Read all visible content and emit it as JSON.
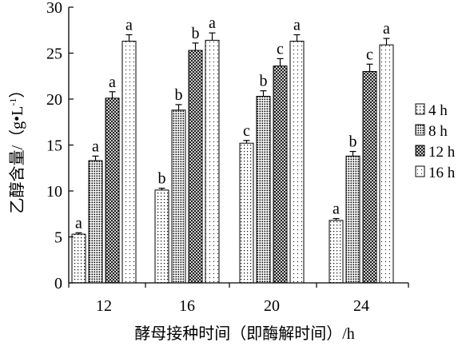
{
  "chart_data": {
    "type": "bar",
    "title": "",
    "xlabel": "酵母接种时间（即酶解时间）/h",
    "ylabel": "乙醇含量/（g•L",
    "ylabel_superscript": "-1",
    "ylabel_close": "）",
    "ylim": [
      0,
      30
    ],
    "yticks": [
      "0",
      "5",
      "10",
      "15",
      "20",
      "25",
      "30"
    ],
    "categories": [
      "12",
      "16",
      "20",
      "24"
    ],
    "legend_position": "right",
    "grid": false,
    "series": [
      {
        "name": "4 h",
        "pattern": "sparse-dots",
        "values": [
          5.3,
          10.1,
          15.2,
          6.8
        ],
        "errors": [
          0.15,
          0.2,
          0.3,
          0.2
        ],
        "letters": [
          "a",
          "b",
          "c",
          "a"
        ]
      },
      {
        "name": "8 h",
        "pattern": "dense-dots",
        "values": [
          13.3,
          18.8,
          20.3,
          13.8
        ],
        "errors": [
          0.5,
          0.6,
          0.6,
          0.5
        ],
        "letters": [
          "a",
          "b",
          "b",
          "b"
        ]
      },
      {
        "name": "12 h",
        "pattern": "crosshatch",
        "values": [
          20.1,
          25.3,
          23.6,
          23.0
        ],
        "errors": [
          0.7,
          0.8,
          0.8,
          0.8
        ],
        "letters": [
          "a",
          "b",
          "c",
          "c"
        ]
      },
      {
        "name": "16 h",
        "pattern": "fine-dots",
        "values": [
          26.3,
          26.4,
          26.3,
          25.9
        ],
        "errors": [
          0.7,
          0.8,
          0.7,
          0.7
        ],
        "letters": [
          "a",
          "a",
          "a",
          "a"
        ]
      }
    ]
  }
}
